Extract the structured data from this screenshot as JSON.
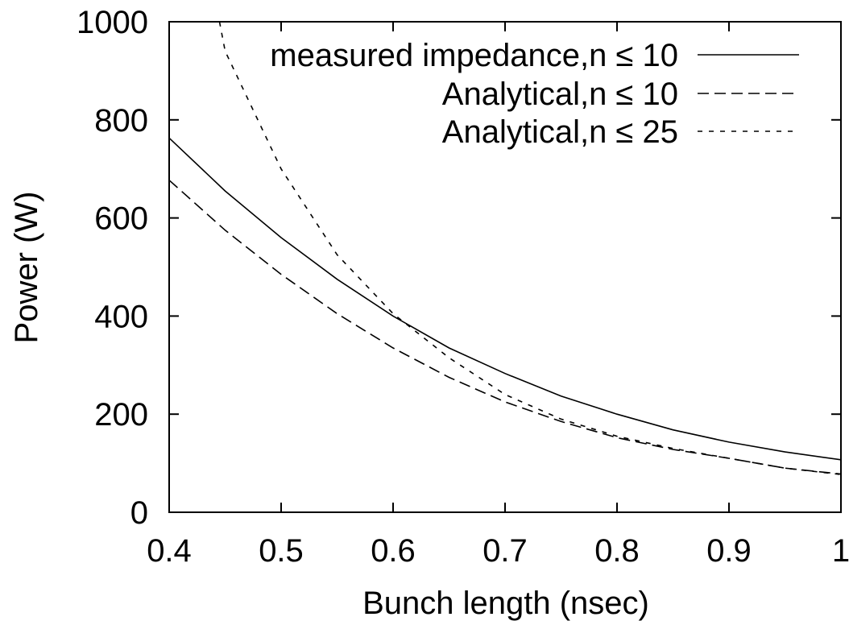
{
  "chart_data": {
    "type": "line",
    "title": "",
    "xlabel": "Bunch length (nsec)",
    "ylabel": "Power (W)",
    "xlim": [
      0.4,
      1.0
    ],
    "ylim": [
      0,
      1000
    ],
    "x_ticks": [
      "0.4",
      "0.5",
      "0.6",
      "0.7",
      "0.8",
      "0.9",
      "1"
    ],
    "y_ticks": [
      "0",
      "200",
      "400",
      "600",
      "800",
      "1000"
    ],
    "grid": false,
    "legend_position": "top-right",
    "series": [
      {
        "name": "measured impedance,n ≤ 10",
        "line_style": "solid",
        "color": "#000000",
        "x": [
          0.4,
          0.45,
          0.5,
          0.55,
          0.6,
          0.65,
          0.7,
          0.75,
          0.8,
          0.85,
          0.9,
          0.95,
          1.0
        ],
        "y": [
          763,
          655,
          560,
          475,
          400,
          335,
          283,
          237,
          200,
          168,
          143,
          123,
          107
        ]
      },
      {
        "name": "Analytical,n ≤ 10",
        "line_style": "dashed",
        "color": "#000000",
        "x": [
          0.4,
          0.45,
          0.5,
          0.55,
          0.6,
          0.65,
          0.7,
          0.75,
          0.8,
          0.85,
          0.9,
          0.95,
          1.0
        ],
        "y": [
          677,
          575,
          485,
          405,
          335,
          275,
          225,
          185,
          152,
          128,
          110,
          90,
          78
        ]
      },
      {
        "name": "Analytical,n ≤ 25",
        "line_style": "dotted",
        "color": "#000000",
        "x": [
          0.445,
          0.45,
          0.5,
          0.55,
          0.6,
          0.65,
          0.7,
          0.75,
          0.8,
          0.85,
          0.9,
          0.95,
          1.0
        ],
        "y": [
          1000,
          940,
          700,
          525,
          405,
          315,
          240,
          190,
          155,
          130,
          110,
          90,
          77
        ]
      }
    ]
  }
}
